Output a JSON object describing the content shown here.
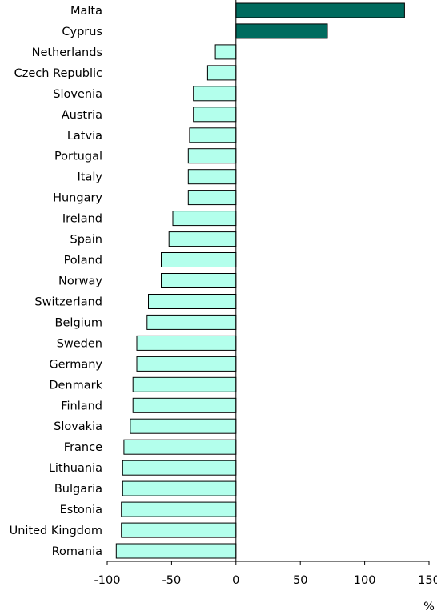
{
  "chart_data": {
    "type": "bar",
    "orientation": "horizontal",
    "categories": [
      "Malta",
      "Cyprus",
      "Netherlands",
      "Czech Republic",
      "Slovenia",
      "Austria",
      "Latvia",
      "Portugal",
      "Italy",
      "Hungary",
      "Ireland",
      "Spain",
      "Poland",
      "Norway",
      "Switzerland",
      "Belgium",
      "Sweden",
      "Germany",
      "Denmark",
      "Finland",
      "Slovakia",
      "France",
      "Lithuania",
      "Bulgaria",
      "Estonia",
      "United Kingdom",
      "Romania"
    ],
    "values": [
      131,
      71,
      -16,
      -22,
      -33,
      -33,
      -36,
      -37,
      -37,
      -37,
      -49,
      -52,
      -58,
      -58,
      -68,
      -69,
      -77,
      -77,
      -80,
      -80,
      -82,
      -87,
      -88,
      -88,
      -89,
      -89,
      -93
    ],
    "xlim": [
      -100,
      150
    ],
    "xticks": [
      -100,
      -50,
      0,
      50,
      100,
      150
    ],
    "xticklabels": [
      "-100",
      "-50",
      "0",
      "50",
      "100",
      "150"
    ],
    "xlabel": "%",
    "grid": false,
    "colors": {
      "positive": "#006B5E",
      "negative": "#B3FFEC",
      "edge": "#000000"
    }
  }
}
